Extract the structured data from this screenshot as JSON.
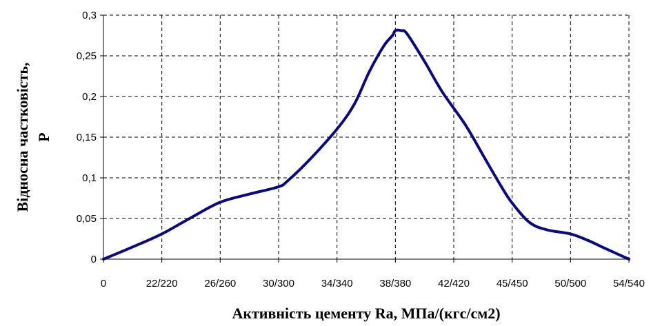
{
  "chart_data": {
    "type": "line",
    "title": "",
    "xlabel": "Активність цементу Ra, МПа/(кгс/см2)",
    "ylabel_line1": "Відносна частковість,",
    "ylabel_line2": "P",
    "x_tick_labels": [
      "0",
      "22/220",
      "26/260",
      "30/300",
      "34/340",
      "38/380",
      "42/420",
      "45/450",
      "50/500",
      "54/540"
    ],
    "y_tick_labels": [
      "0",
      "0,05",
      "0,1",
      "0,15",
      "0,2",
      "0,25",
      "0,3"
    ],
    "y_ticks": [
      0,
      0.05,
      0.1,
      0.15,
      0.2,
      0.25,
      0.3
    ],
    "ylim": [
      0,
      0.3
    ],
    "x_index_range": [
      0,
      9
    ],
    "grid": true,
    "grid_style": "dashed",
    "series": [
      {
        "color": "#0a0a78",
        "x_index": [
          0,
          0.5,
          1,
          1.5,
          2,
          2.5,
          3,
          3.15,
          3.5,
          4,
          4.3,
          4.55,
          4.8,
          4.95,
          5.0,
          5.1,
          5.2,
          5.5,
          5.8,
          6.2,
          6.5,
          6.8,
          7.0,
          7.3,
          7.6,
          8.0,
          8.3,
          8.6,
          9.0
        ],
        "values": [
          0,
          0.015,
          0.031,
          0.051,
          0.07,
          0.08,
          0.089,
          0.096,
          0.12,
          0.16,
          0.191,
          0.23,
          0.262,
          0.275,
          0.281,
          0.281,
          0.277,
          0.243,
          0.206,
          0.165,
          0.128,
          0.091,
          0.069,
          0.045,
          0.036,
          0.031,
          0.023,
          0.013,
          0
        ]
      }
    ]
  }
}
